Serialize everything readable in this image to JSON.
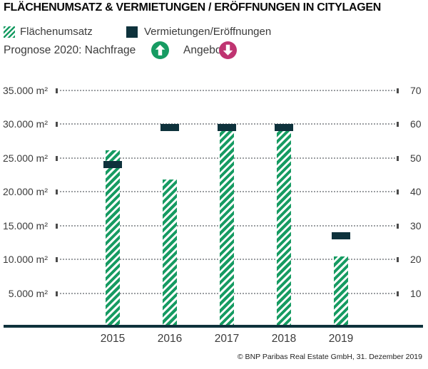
{
  "title": "FLÄCHENUMSATZ & VERMIETUNGEN / ERÖFFNUNGEN IN CITYLAGEN",
  "legend": {
    "flaechenumsatz": "Flächenumsatz",
    "vermietungen": "Vermietungen/Eröffnungen"
  },
  "forecast": {
    "demand_label": "Prognose 2020: Nachfrage",
    "supply_label": "Angebot",
    "demand_trend": "up",
    "supply_trend": "down",
    "icons": {
      "demand": "arrow-up-circle",
      "supply": "arrow-down-circle"
    }
  },
  "colors": {
    "green": "#169b62",
    "navy": "#0e323c",
    "pink": "#bf3471",
    "grid_dots": "#9b9ea1"
  },
  "source": "© BNP Paribas Real Estate GmbH, 31. Dezember 2019",
  "chart_data": {
    "type": "bar",
    "title": "FLÄCHENUMSATZ & VERMIETUNGEN / ERÖFFNUNGEN IN CITYLAGEN",
    "categories": [
      "2015",
      "2016",
      "2017",
      "2018",
      "2019"
    ],
    "series": [
      {
        "name": "Flächenumsatz",
        "axis": "left",
        "style": "hatched-bar",
        "color": "#169b62",
        "values": [
          26100,
          21800,
          29700,
          29700,
          10400
        ]
      },
      {
        "name": "Vermietungen/Eröffnungen",
        "axis": "right",
        "style": "dash-marker",
        "color": "#0e323c",
        "values": [
          48,
          59,
          59,
          59,
          27
        ]
      }
    ],
    "left_axis": {
      "min": 0,
      "max": 35000,
      "step": 5000,
      "tick_labels": [
        "5.000 m²",
        "10.000 m²",
        "15.000 m²",
        "20.000 m²",
        "25.000 m²",
        "30.000 m²",
        "35.000 m²"
      ]
    },
    "right_axis": {
      "min": 0,
      "max": 70,
      "step": 10,
      "tick_labels": [
        "10",
        "20",
        "30",
        "40",
        "50",
        "60",
        "70"
      ]
    },
    "grid": "horizontal-dotted",
    "legend_position": "top-left"
  }
}
